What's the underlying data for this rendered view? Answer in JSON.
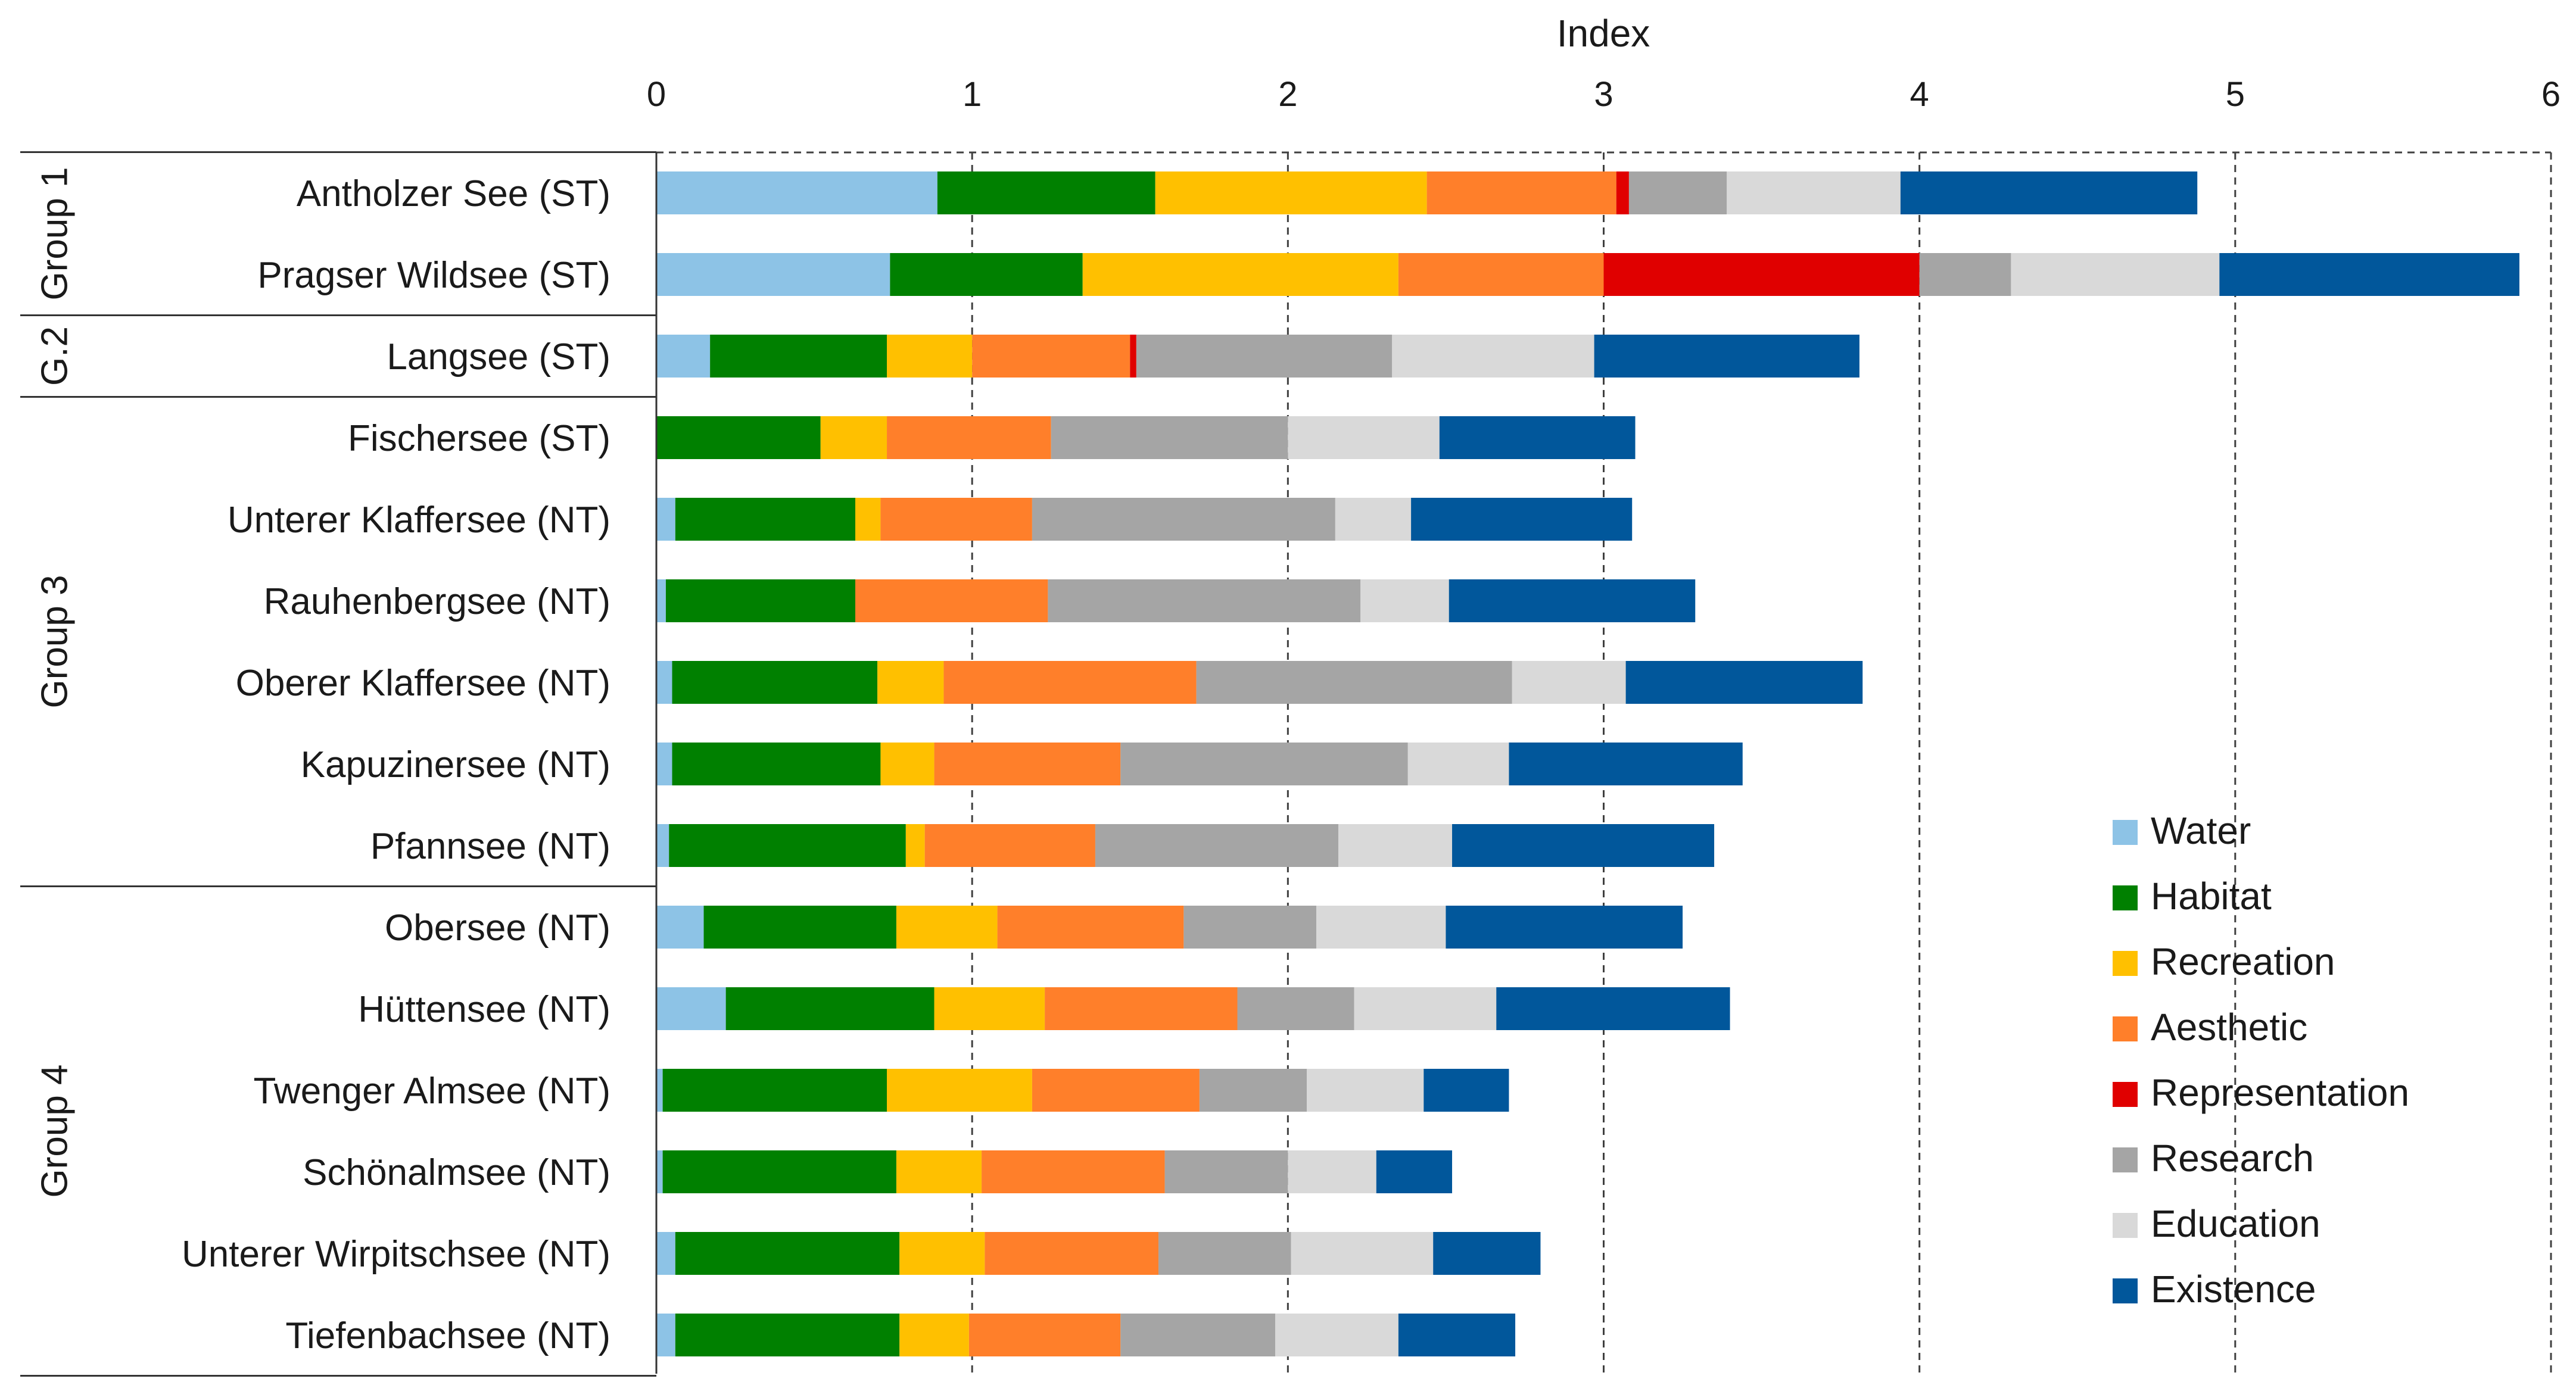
{
  "chart_data": {
    "type": "bar",
    "orientation": "horizontal",
    "stacked": true,
    "xlabel": "Index",
    "xlabel_position": "top",
    "xlim": [
      0,
      6
    ],
    "xticks": [
      "0",
      "1",
      "2",
      "3",
      "4",
      "5",
      "6"
    ],
    "grid": "vertical dashed",
    "legend_position": "bottom-right",
    "categories": [
      "Antholzer See (ST)",
      "Pragser Wildsee (ST)",
      "Langsee (ST)",
      "Fischersee (ST)",
      "Unterer Klaffersee (NT)",
      "Rauhenbergsee (NT)",
      "Oberer Klaffersee (NT)",
      "Kapuzinersee (NT)",
      "Pfannsee (NT)",
      "Obersee (NT)",
      "Hüttensee (NT)",
      "Twenger Almsee (NT)",
      "Schönalmsee (NT)",
      "Unterer Wirpitschsee (NT)",
      "Tiefenbachsee (NT)"
    ],
    "groups": [
      {
        "label": "Group 1",
        "categories": [
          "Antholzer See (ST)",
          "Pragser Wildsee (ST)"
        ]
      },
      {
        "label": "G.2",
        "categories": [
          "Langsee (ST)"
        ]
      },
      {
        "label": "Group 3",
        "categories": [
          "Fischersee (ST)",
          "Unterer Klaffersee (NT)",
          "Rauhenbergsee (NT)",
          "Oberer Klaffersee (NT)",
          "Kapuzinersee (NT)",
          "Pfannsee (NT)"
        ]
      },
      {
        "label": "Group 4",
        "categories": [
          "Obersee (NT)",
          "Hüttensee (NT)",
          "Twenger Almsee (NT)",
          "Schönalmsee (NT)",
          "Unterer Wirpitschsee (NT)",
          "Tiefenbachsee (NT)"
        ]
      }
    ],
    "series": [
      {
        "name": "Water",
        "color": "#8DC3E6",
        "values": [
          0.89,
          0.74,
          0.17,
          0.0,
          0.06,
          0.03,
          0.05,
          0.05,
          0.04,
          0.15,
          0.22,
          0.02,
          0.02,
          0.06,
          0.06
        ]
      },
      {
        "name": "Habitat",
        "color": "#008000",
        "values": [
          0.69,
          0.61,
          0.56,
          0.52,
          0.57,
          0.6,
          0.65,
          0.66,
          0.75,
          0.61,
          0.66,
          0.71,
          0.74,
          0.71,
          0.71
        ]
      },
      {
        "name": "Recreation",
        "color": "#FFC000",
        "values": [
          0.86,
          1.0,
          0.27,
          0.21,
          0.08,
          0.0,
          0.21,
          0.17,
          0.06,
          0.32,
          0.35,
          0.46,
          0.27,
          0.27,
          0.22
        ]
      },
      {
        "name": "Aesthetic",
        "color": "#FF7F2A",
        "values": [
          0.6,
          0.65,
          0.5,
          0.52,
          0.48,
          0.61,
          0.8,
          0.59,
          0.54,
          0.59,
          0.61,
          0.53,
          0.58,
          0.55,
          0.48
        ]
      },
      {
        "name": "Representation",
        "color": "#E00000",
        "values": [
          0.04,
          1.0,
          0.02,
          0.0,
          0.0,
          0.0,
          0.0,
          0.0,
          0.0,
          0.0,
          0.0,
          0.0,
          0.0,
          0.0,
          0.0
        ]
      },
      {
        "name": "Research",
        "color": "#A5A5A5",
        "values": [
          0.31,
          0.29,
          0.81,
          0.75,
          0.96,
          0.99,
          1.0,
          0.91,
          0.77,
          0.42,
          0.37,
          0.34,
          0.39,
          0.42,
          0.49
        ]
      },
      {
        "name": "Education",
        "color": "#D9D9D9",
        "values": [
          0.55,
          0.66,
          0.64,
          0.48,
          0.24,
          0.28,
          0.36,
          0.32,
          0.36,
          0.41,
          0.45,
          0.37,
          0.28,
          0.45,
          0.39
        ]
      },
      {
        "name": "Existence",
        "color": "#01579B",
        "values": [
          0.94,
          0.95,
          0.84,
          0.62,
          0.7,
          0.78,
          0.75,
          0.74,
          0.83,
          0.75,
          0.74,
          0.27,
          0.24,
          0.34,
          0.37
        ]
      }
    ]
  }
}
